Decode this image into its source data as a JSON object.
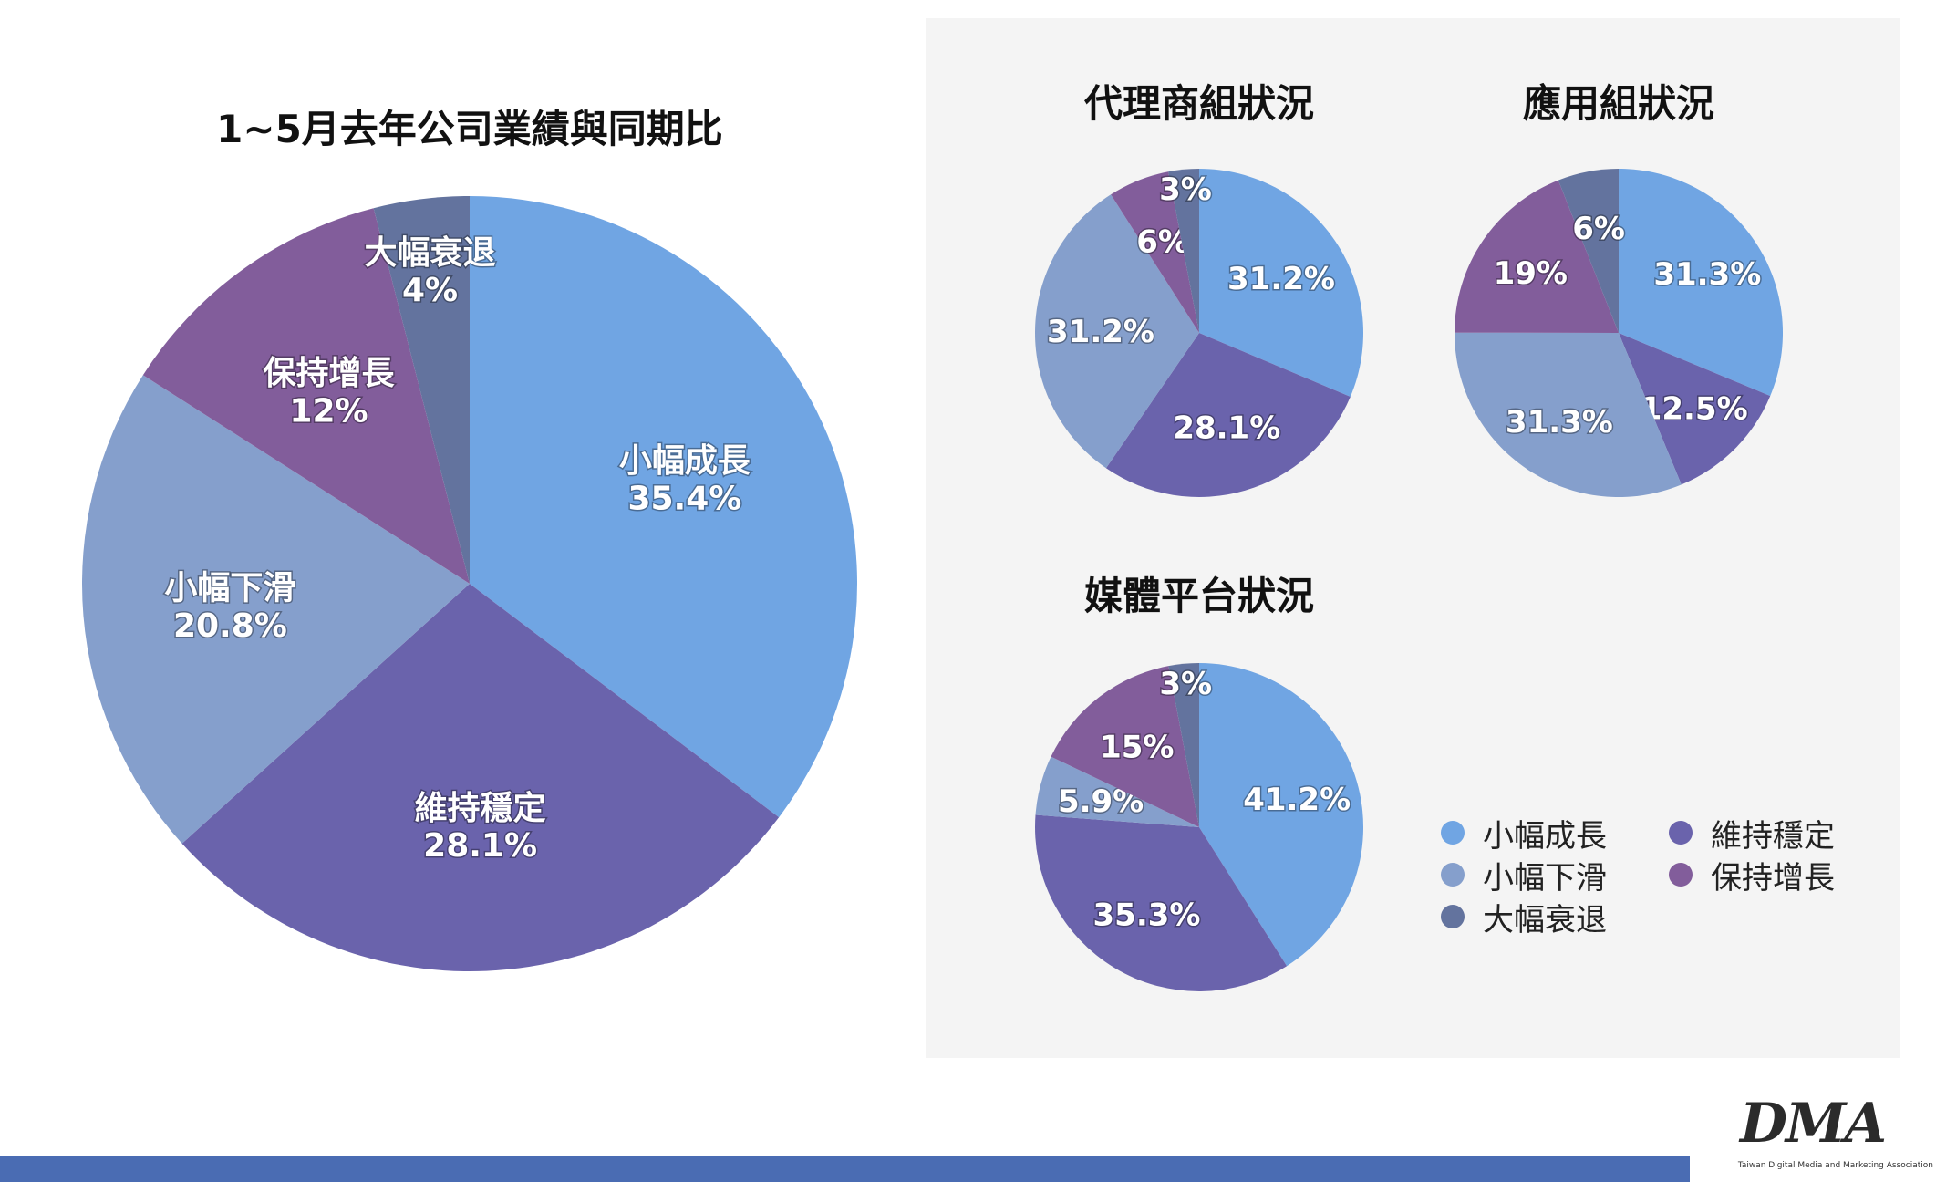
{
  "titles": {
    "main": "1~5月去年公司業績與同期比",
    "agency": "代理商組狀況",
    "app": "應用組狀況",
    "media": "媒體平台狀況"
  },
  "colors": {
    "small_growth": "#70a5e3",
    "stable": "#6a63ac",
    "small_decline": "#859fcc",
    "keep_growth": "#825d9b",
    "big_decline": "#63739e"
  },
  "legend": [
    {
      "label": "小幅成長",
      "color": "#70a5e3"
    },
    {
      "label": "維持穩定",
      "color": "#6a63ac"
    },
    {
      "label": "小幅下滑",
      "color": "#859fcc"
    },
    {
      "label": "保持增長",
      "color": "#825d9b"
    },
    {
      "label": "大幅衰退",
      "color": "#63739e"
    }
  ],
  "chart_data": [
    {
      "type": "pie",
      "title": "1~5月去年公司業績與同期比",
      "slices": [
        {
          "label": "小幅成長",
          "value": 35.4,
          "display": "35.4%",
          "color": "#70a5e3"
        },
        {
          "label": "維持穩定",
          "value": 28.1,
          "display": "28.1%",
          "color": "#6a63ac"
        },
        {
          "label": "小幅下滑",
          "value": 20.8,
          "display": "20.8%",
          "color": "#859fcc"
        },
        {
          "label": "保持增長",
          "value": 12,
          "display": "12%",
          "color": "#825d9b"
        },
        {
          "label": "大幅衰退",
          "value": 4,
          "display": "4%",
          "color": "#63739e"
        }
      ]
    },
    {
      "type": "pie",
      "title": "代理商組狀況",
      "slices": [
        {
          "label": "小幅成長",
          "value": 31.2,
          "display": "31.2%",
          "color": "#70a5e3"
        },
        {
          "label": "維持穩定",
          "value": 28.1,
          "display": "28.1%",
          "color": "#6a63ac"
        },
        {
          "label": "小幅下滑",
          "value": 31.2,
          "display": "31.2%",
          "color": "#859fcc"
        },
        {
          "label": "保持增長",
          "value": 6,
          "display": "6%",
          "color": "#825d9b"
        },
        {
          "label": "大幅衰退",
          "value": 3,
          "display": "3%",
          "color": "#63739e"
        }
      ]
    },
    {
      "type": "pie",
      "title": "應用組狀況",
      "slices": [
        {
          "label": "小幅成長",
          "value": 31.3,
          "display": "31.3%",
          "color": "#70a5e3"
        },
        {
          "label": "維持穩定",
          "value": 12.5,
          "display": "12.5%",
          "color": "#6a63ac"
        },
        {
          "label": "小幅下滑",
          "value": 31.3,
          "display": "31.3%",
          "color": "#859fcc"
        },
        {
          "label": "保持增長",
          "value": 19,
          "display": "19%",
          "color": "#825d9b"
        },
        {
          "label": "大幅衰退",
          "value": 6,
          "display": "6%",
          "color": "#63739e"
        }
      ]
    },
    {
      "type": "pie",
      "title": "媒體平台狀況",
      "slices": [
        {
          "label": "小幅成長",
          "value": 41.2,
          "display": "41.2%",
          "color": "#70a5e3"
        },
        {
          "label": "維持穩定",
          "value": 35.3,
          "display": "35.3%",
          "color": "#6a63ac"
        },
        {
          "label": "小幅下滑",
          "value": 5.9,
          "display": "5.9%",
          "color": "#859fcc"
        },
        {
          "label": "保持增長",
          "value": 15,
          "display": "15%",
          "color": "#825d9b"
        },
        {
          "label": "大幅衰退",
          "value": 3,
          "display": "3%",
          "color": "#63739e"
        }
      ]
    }
  ],
  "logo": {
    "mark": "DMA",
    "caption": "Taiwan Digital Media and Marketing Association"
  }
}
